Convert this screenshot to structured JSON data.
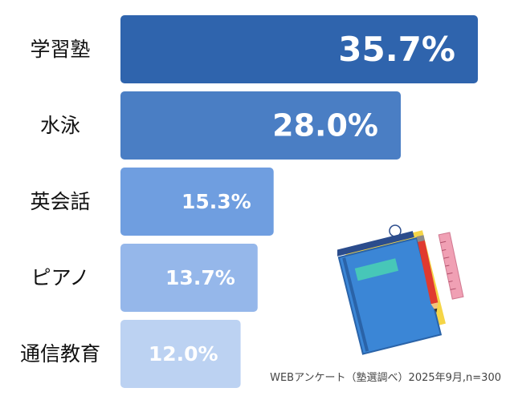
{
  "chart_data": {
    "type": "bar",
    "orientation": "horizontal",
    "categories": [
      "学習塾",
      "水泳",
      "英会話",
      "ピアノ",
      "通信教育"
    ],
    "values": [
      35.7,
      28.0,
      15.3,
      13.7,
      12.0
    ],
    "value_labels": [
      "35.7%",
      "28.0%",
      "15.3%",
      "13.7%",
      "12.0%"
    ],
    "bar_colors": [
      "#2f64ad",
      "#4a7ec4",
      "#6f9ee0",
      "#95b7ea",
      "#bcd2f2"
    ],
    "xlim": [
      0,
      40
    ],
    "grid": false,
    "legend": "none"
  },
  "source_note": "WEBアンケート（塾選調べ）2025年9月,n=300",
  "illustration": "books-and-pencils-icon"
}
